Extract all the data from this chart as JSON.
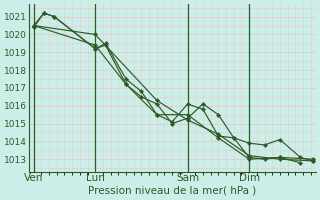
{
  "bg_color": "#cceee8",
  "grid_color_major": "#e8c8c8",
  "grid_color_minor": "#e8c8c8",
  "line_color": "#2d5a27",
  "xlabel": "Pression niveau de la mer( hPa )",
  "ylim": [
    1012.3,
    1021.7
  ],
  "yticks": [
    1013,
    1014,
    1015,
    1016,
    1017,
    1018,
    1019,
    1020,
    1021
  ],
  "xtick_labels": [
    "Ven",
    "Lun",
    "Sam",
    "Dim"
  ],
  "xtick_positions": [
    0,
    48,
    120,
    168
  ],
  "xlim": [
    -4,
    220
  ],
  "series": [
    [
      0,
      1020.4,
      8,
      1021.2,
      16,
      1021.0,
      48,
      1019.2,
      56,
      1019.4,
      72,
      1017.2,
      84,
      1016.5,
      96,
      1016.1,
      108,
      1015.0,
      120,
      1015.3,
      132,
      1016.1,
      144,
      1015.5,
      156,
      1014.2,
      168,
      1013.1,
      180,
      1013.0,
      192,
      1013.1,
      208,
      1012.8
    ],
    [
      0,
      1020.5,
      8,
      1021.2,
      16,
      1021.0,
      48,
      1019.2,
      56,
      1019.5,
      72,
      1017.5,
      84,
      1016.8,
      96,
      1015.5,
      108,
      1015.1,
      120,
      1016.1,
      132,
      1015.8,
      144,
      1014.3,
      156,
      1014.2,
      168,
      1013.9,
      180,
      1013.8,
      192,
      1014.1,
      208,
      1013.1,
      218,
      1012.9
    ],
    [
      0,
      1020.5,
      48,
      1019.4,
      72,
      1017.2,
      96,
      1015.5,
      120,
      1015.5,
      144,
      1014.2,
      168,
      1013.0,
      192,
      1013.1,
      218,
      1013.0
    ],
    [
      0,
      1020.5,
      48,
      1020.0,
      96,
      1016.3,
      120,
      1015.2,
      144,
      1014.4,
      168,
      1013.2,
      192,
      1013.0,
      218,
      1012.9
    ]
  ],
  "vline_positions": [
    0,
    48,
    120,
    168
  ],
  "xlabel_fontsize": 7.5,
  "ytick_fontsize": 6.5,
  "xtick_fontsize": 7.5
}
